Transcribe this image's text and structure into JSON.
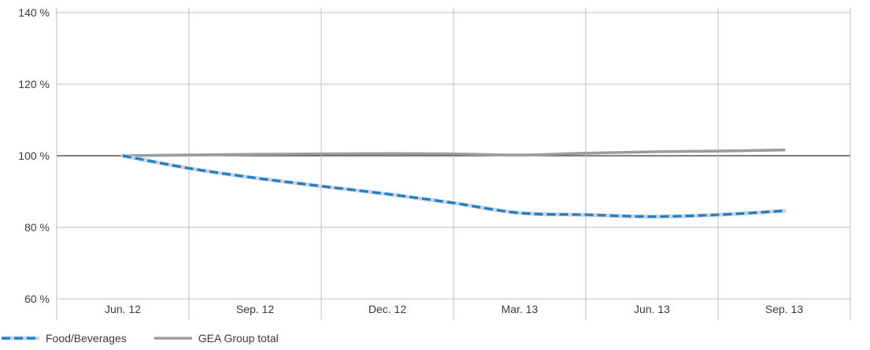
{
  "chart_data": {
    "type": "line",
    "title": "",
    "xlabel": "",
    "ylabel": "",
    "categories": [
      "Jun. 12",
      "Sep. 12",
      "Dec. 12",
      "Mar. 13",
      "Jun. 13",
      "Sep. 13"
    ],
    "ylim": [
      60,
      140
    ],
    "yticks": [
      60,
      80,
      100,
      120,
      140
    ],
    "ytick_labels": [
      "60 %",
      "80 %",
      "100 %",
      "120 %",
      "140 %"
    ],
    "reference_line": 100,
    "grid": true,
    "legend_position": "bottom-left",
    "series": [
      {
        "name": "Food/Beverages",
        "style": "dashed",
        "color": "#1f7fc4",
        "halo_color": "#c9d3e2",
        "x": [
          0,
          0.5,
          1,
          1.5,
          2,
          2.5,
          3,
          3.5,
          4,
          4.5,
          5
        ],
        "values": [
          100,
          96.5,
          93.8,
          91.5,
          89.3,
          86.8,
          84.0,
          83.5,
          83.0,
          83.5,
          84.6
        ]
      },
      {
        "name": "GEA Group total",
        "style": "solid",
        "color": "#9c9c9c",
        "x": [
          0,
          0.5,
          1,
          1.5,
          2,
          2.5,
          3,
          3.5,
          4,
          4.5,
          5
        ],
        "values": [
          100,
          100.2,
          100.4,
          100.5,
          100.6,
          100.5,
          100.2,
          100.7,
          101.1,
          101.3,
          101.6
        ]
      }
    ]
  }
}
